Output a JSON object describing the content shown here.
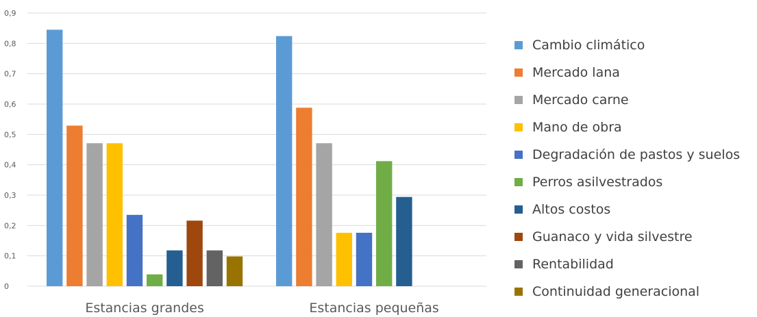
{
  "chart_data": {
    "type": "bar",
    "categories": [
      "Estancias grandes",
      "Estancias pequeñas"
    ],
    "ylim": [
      0,
      0.9
    ],
    "yticks": [
      "0",
      "0,1",
      "0,2",
      "0,3",
      "0,4",
      "0,5",
      "0,6",
      "0,7",
      "0,8",
      "0,9"
    ],
    "grid": true,
    "legend_position": "right",
    "series": [
      {
        "name": "Cambio climático",
        "color": "#5B9BD5",
        "values": [
          0.845,
          0.824
        ]
      },
      {
        "name": "Mercado  lana",
        "color": "#ED7D31",
        "values": [
          0.529,
          0.588
        ]
      },
      {
        "name": "Mercado carne",
        "color": "#A5A5A5",
        "values": [
          0.471,
          0.471
        ]
      },
      {
        "name": "Mano de obra",
        "color": "#FFC000",
        "values": [
          0.471,
          0.176
        ]
      },
      {
        "name": "Degradación de pastos y suelos",
        "color": "#4472C4",
        "values": [
          0.235,
          0.176
        ]
      },
      {
        "name": "Perros asilvestrados",
        "color": "#70AD47",
        "values": [
          0.039,
          0.412
        ]
      },
      {
        "name": "Altos costos",
        "color": "#255E91",
        "values": [
          0.118,
          0.294
        ]
      },
      {
        "name": "Guanaco y vida silvestre",
        "color": "#9E480E",
        "values": [
          0.216,
          0
        ]
      },
      {
        "name": "Rentabilidad",
        "color": "#636363",
        "values": [
          0.118,
          0
        ]
      },
      {
        "name": "Continuidad generacional",
        "color": "#997300",
        "values": [
          0.098,
          0
        ]
      }
    ]
  }
}
